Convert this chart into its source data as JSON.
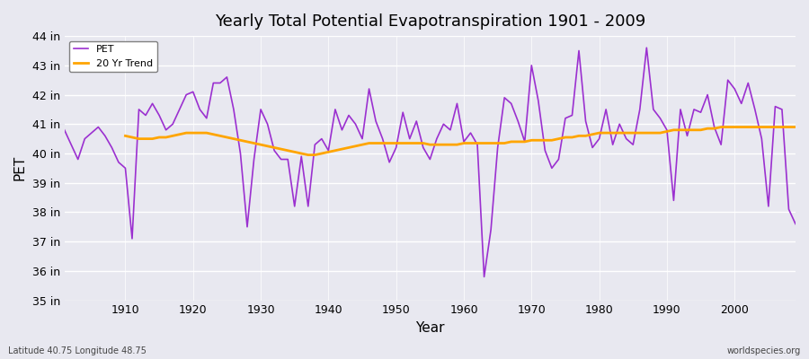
{
  "title": "Yearly Total Potential Evapotranspiration 1901 - 2009",
  "xlabel": "Year",
  "ylabel": "PET",
  "subtitle_left": "Latitude 40.75 Longitude 48.75",
  "subtitle_right": "worldspecies.org",
  "pet_color": "#9b30d0",
  "trend_color": "#FFA500",
  "background_color": "#e8e8f0",
  "ylim": [
    35,
    44
  ],
  "yticks": [
    35,
    36,
    37,
    38,
    39,
    40,
    41,
    42,
    43,
    44
  ],
  "ytick_labels": [
    "35 in",
    "36 in",
    "37 in",
    "38 in",
    "39 in",
    "40 in",
    "41 in",
    "42 in",
    "43 in",
    "44 in"
  ],
  "years": [
    1901,
    1902,
    1903,
    1904,
    1905,
    1906,
    1907,
    1908,
    1909,
    1910,
    1911,
    1912,
    1913,
    1914,
    1915,
    1916,
    1917,
    1918,
    1919,
    1920,
    1921,
    1922,
    1923,
    1924,
    1925,
    1926,
    1927,
    1928,
    1929,
    1930,
    1931,
    1932,
    1933,
    1934,
    1935,
    1936,
    1937,
    1938,
    1939,
    1940,
    1941,
    1942,
    1943,
    1944,
    1945,
    1946,
    1947,
    1948,
    1949,
    1950,
    1951,
    1952,
    1953,
    1954,
    1955,
    1956,
    1957,
    1958,
    1959,
    1960,
    1961,
    1962,
    1963,
    1964,
    1965,
    1966,
    1967,
    1968,
    1969,
    1970,
    1971,
    1972,
    1973,
    1974,
    1975,
    1976,
    1977,
    1978,
    1979,
    1980,
    1981,
    1982,
    1983,
    1984,
    1985,
    1986,
    1987,
    1988,
    1989,
    1990,
    1991,
    1992,
    1993,
    1994,
    1995,
    1996,
    1997,
    1998,
    1999,
    2000,
    2001,
    2002,
    2003,
    2004,
    2005,
    2006,
    2007,
    2008,
    2009
  ],
  "pet_values": [
    40.8,
    40.3,
    39.8,
    40.5,
    40.7,
    40.9,
    40.6,
    40.2,
    39.7,
    39.5,
    37.1,
    41.5,
    41.3,
    41.7,
    41.3,
    40.8,
    41.0,
    41.5,
    42.0,
    42.1,
    41.5,
    41.2,
    42.4,
    42.4,
    42.6,
    41.5,
    40.0,
    37.5,
    39.8,
    41.5,
    41.0,
    40.1,
    39.8,
    39.8,
    38.2,
    39.9,
    38.2,
    40.3,
    40.5,
    40.1,
    41.5,
    40.8,
    41.3,
    41.0,
    40.5,
    42.2,
    41.1,
    40.5,
    39.7,
    40.2,
    41.4,
    40.5,
    41.1,
    40.2,
    39.8,
    40.5,
    41.0,
    40.8,
    41.7,
    40.4,
    40.7,
    40.3,
    35.8,
    37.4,
    40.2,
    41.9,
    41.7,
    41.1,
    40.4,
    43.0,
    41.8,
    40.1,
    39.5,
    39.8,
    41.2,
    41.3,
    43.5,
    41.1,
    40.2,
    40.5,
    41.5,
    40.3,
    41.0,
    40.5,
    40.3,
    41.5,
    43.6,
    41.5,
    41.2,
    40.8,
    38.4,
    41.5,
    40.6,
    41.5,
    41.4,
    42.0,
    40.9,
    40.3,
    42.5,
    42.2,
    41.7,
    42.4,
    41.5,
    40.5,
    38.2,
    41.6,
    41.5,
    38.1,
    37.6
  ],
  "trend_years": [
    1910,
    1911,
    1912,
    1913,
    1914,
    1915,
    1916,
    1917,
    1918,
    1919,
    1920,
    1921,
    1922,
    1923,
    1924,
    1925,
    1926,
    1927,
    1928,
    1929,
    1930,
    1931,
    1932,
    1933,
    1934,
    1935,
    1936,
    1937,
    1938,
    1939,
    1940,
    1941,
    1942,
    1943,
    1944,
    1945,
    1946,
    1947,
    1948,
    1949,
    1950,
    1951,
    1952,
    1953,
    1954,
    1955,
    1956,
    1957,
    1958,
    1959,
    1960,
    1961,
    1962,
    1963,
    1964,
    1965,
    1966,
    1967,
    1968,
    1969,
    1970,
    1971,
    1972,
    1973,
    1974,
    1975,
    1976,
    1977,
    1978,
    1979,
    1980,
    1981,
    1982,
    1983,
    1984,
    1985,
    1986,
    1987,
    1988,
    1989,
    1990,
    1991,
    1992,
    1993,
    1994,
    1995,
    1996,
    1997,
    1998,
    1999,
    2000,
    2001,
    2002,
    2003,
    2004,
    2005,
    2006,
    2007,
    2008,
    2009
  ],
  "trend_values": [
    40.6,
    40.55,
    40.5,
    40.5,
    40.5,
    40.55,
    40.55,
    40.6,
    40.65,
    40.7,
    40.7,
    40.7,
    40.7,
    40.65,
    40.6,
    40.55,
    40.5,
    40.45,
    40.4,
    40.35,
    40.3,
    40.25,
    40.2,
    40.15,
    40.1,
    40.05,
    40.0,
    39.95,
    39.95,
    40.0,
    40.05,
    40.1,
    40.15,
    40.2,
    40.25,
    40.3,
    40.35,
    40.35,
    40.35,
    40.35,
    40.35,
    40.35,
    40.35,
    40.35,
    40.35,
    40.3,
    40.3,
    40.3,
    40.3,
    40.3,
    40.35,
    40.35,
    40.35,
    40.35,
    40.35,
    40.35,
    40.35,
    40.4,
    40.4,
    40.4,
    40.45,
    40.45,
    40.45,
    40.45,
    40.5,
    40.55,
    40.55,
    40.6,
    40.6,
    40.65,
    40.7,
    40.7,
    40.7,
    40.7,
    40.7,
    40.7,
    40.7,
    40.7,
    40.7,
    40.7,
    40.75,
    40.8,
    40.8,
    40.8,
    40.8,
    40.8,
    40.85,
    40.85,
    40.9,
    40.9,
    40.9,
    40.9,
    40.9,
    40.9,
    40.9,
    40.9,
    40.9,
    40.9,
    40.9,
    40.9
  ]
}
